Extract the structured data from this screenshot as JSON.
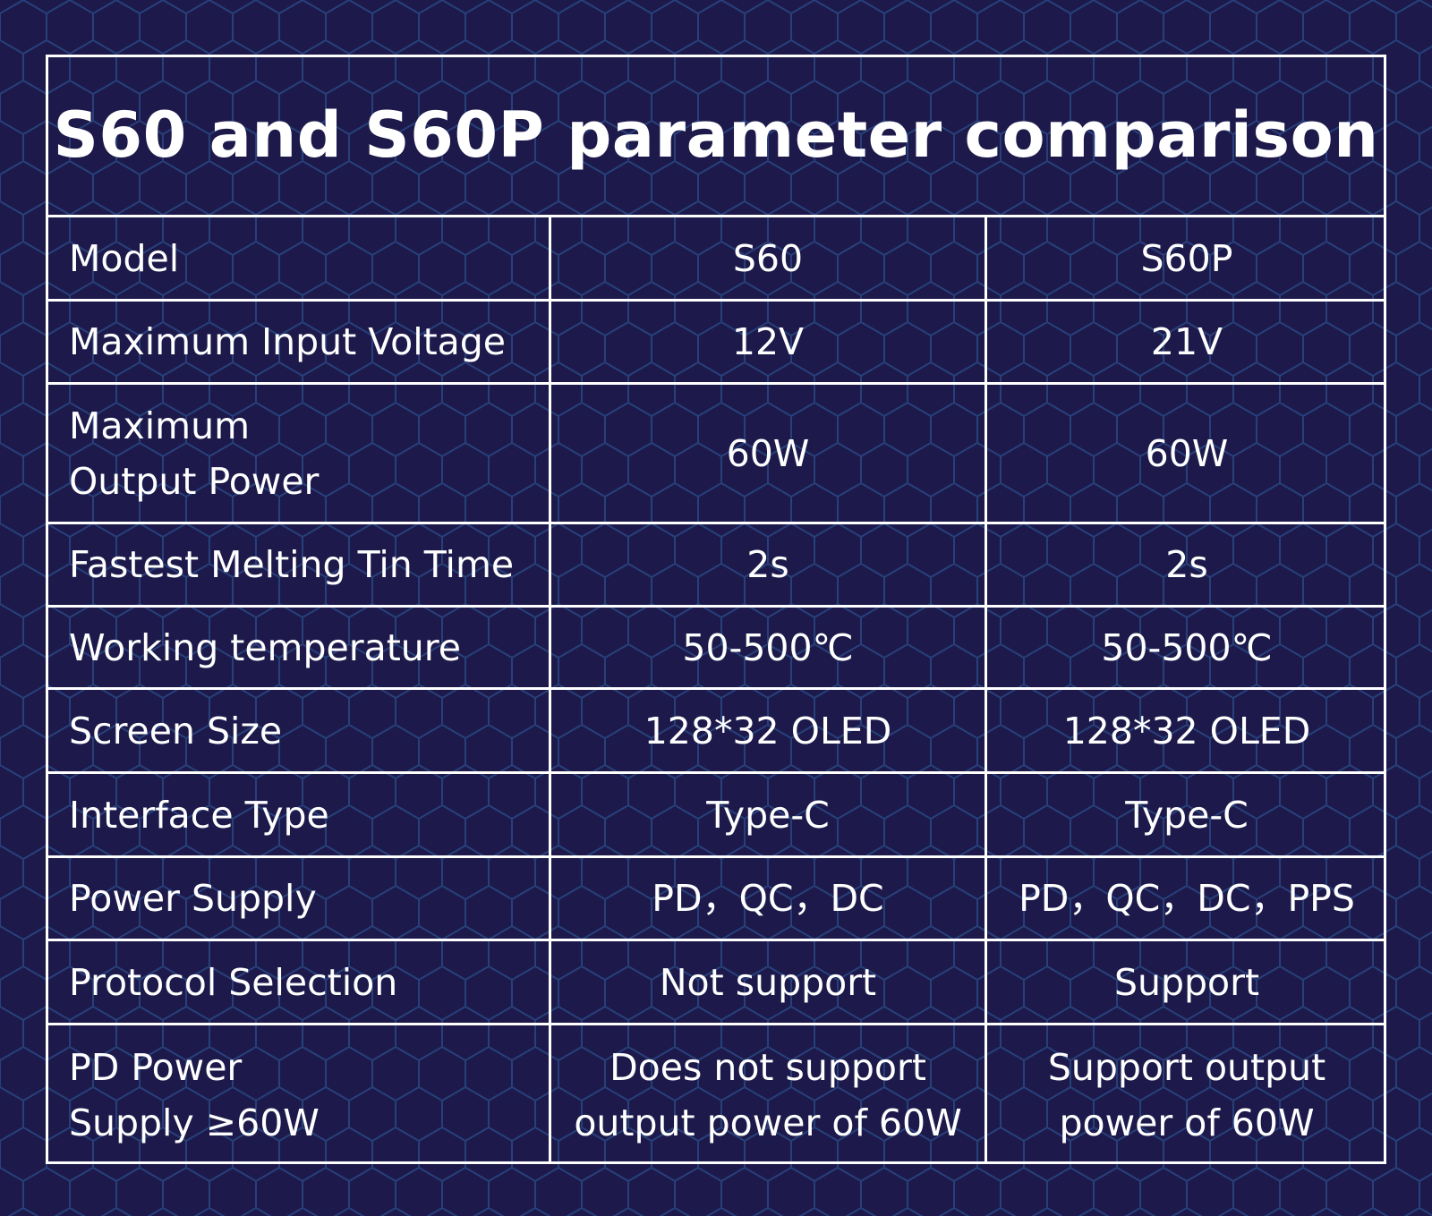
{
  "header": {
    "title": "S60 and S60P parameter comparison"
  },
  "table": {
    "rows": [
      [
        "Model",
        "S60",
        "S60P"
      ],
      [
        "Maximum Input Voltage",
        "12V",
        "21V"
      ],
      [
        [
          "Maximum",
          "Output Power"
        ],
        "60W",
        "60W"
      ],
      [
        "Fastest Melting Tin Time",
        "2s",
        "2s"
      ],
      [
        "Working temperature",
        "50-500℃",
        "50-500℃"
      ],
      [
        "Screen Size",
        "128*32 OLED",
        "128*32 OLED"
      ],
      [
        "Interface Type",
        "Type-C",
        "Type-C"
      ],
      [
        "Power Supply",
        "PD，QC，DC",
        "PD，QC，DC，PPS"
      ],
      [
        "Protocol Selection",
        "Not support",
        "Support"
      ],
      [
        [
          "PD Power",
          "Supply ≥60W"
        ],
        [
          "Does not support",
          "output power of 60W"
        ],
        [
          "Support output",
          "power of 60W"
        ]
      ]
    ]
  }
}
